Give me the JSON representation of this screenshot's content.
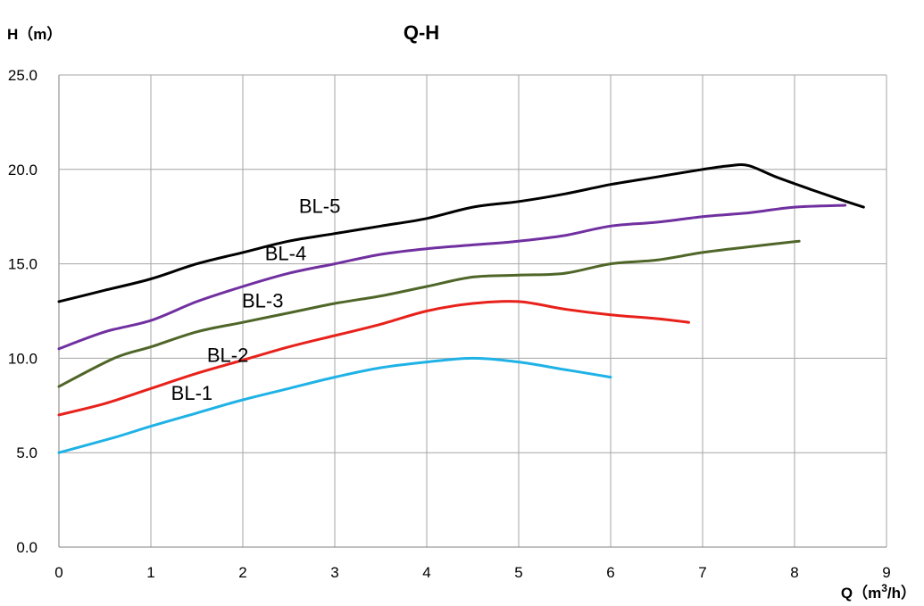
{
  "chart_data": {
    "type": "line",
    "title": "Q-H",
    "ylabel": "H（m）",
    "xlabel_prefix": "Q（m",
    "xlabel_sup": "3",
    "xlabel_suffix": "/h）",
    "xlim": [
      0,
      9
    ],
    "ylim": [
      0,
      25
    ],
    "xticks": [
      "0",
      "1",
      "2",
      "3",
      "4",
      "5",
      "6",
      "7",
      "8",
      "9"
    ],
    "yticks": [
      "0.0",
      "5.0",
      "10.0",
      "15.0",
      "20.0",
      "25.0"
    ],
    "grid": true,
    "legend": "none",
    "series": [
      {
        "name": "BL-1",
        "color": "#1fb2e6",
        "label_at": [
          1.22,
          7.8
        ],
        "x": [
          0,
          0.6,
          1,
          1.5,
          2,
          2.5,
          3,
          3.5,
          4,
          4.5,
          5,
          5.5,
          6
        ],
        "y": [
          5.0,
          5.8,
          6.4,
          7.1,
          7.8,
          8.4,
          9.0,
          9.5,
          9.8,
          10.0,
          9.8,
          9.4,
          9.0
        ]
      },
      {
        "name": "BL-2",
        "color": "#e8211b",
        "label_at": [
          1.61,
          9.8
        ],
        "x": [
          0,
          0.5,
          1,
          1.5,
          2,
          2.5,
          3,
          3.5,
          4,
          4.5,
          5,
          5.5,
          6,
          6.5,
          6.85
        ],
        "y": [
          7.0,
          7.6,
          8.4,
          9.2,
          9.9,
          10.6,
          11.2,
          11.8,
          12.5,
          12.9,
          13.0,
          12.6,
          12.3,
          12.1,
          11.9
        ]
      },
      {
        "name": "BL-3",
        "color": "#4f6628",
        "label_at": [
          1.99,
          12.7
        ],
        "x": [
          0,
          0.6,
          1,
          1.5,
          2,
          2.5,
          3,
          3.5,
          4,
          4.5,
          5,
          5.5,
          6,
          6.5,
          7,
          7.5,
          8.05
        ],
        "y": [
          8.5,
          10.0,
          10.6,
          11.4,
          11.9,
          12.4,
          12.9,
          13.3,
          13.8,
          14.3,
          14.4,
          14.5,
          15.0,
          15.2,
          15.6,
          15.9,
          16.2
        ]
      },
      {
        "name": "BL-4",
        "color": "#7030a0",
        "label_at": [
          2.24,
          15.2
        ],
        "x": [
          0,
          0.5,
          1,
          1.5,
          2,
          2.5,
          3,
          3.5,
          4,
          4.5,
          5,
          5.5,
          6,
          6.5,
          7,
          7.5,
          8,
          8.55
        ],
        "y": [
          10.5,
          11.4,
          12.0,
          13.0,
          13.8,
          14.5,
          15.0,
          15.5,
          15.8,
          16.0,
          16.2,
          16.5,
          17.0,
          17.2,
          17.5,
          17.7,
          18.0,
          18.1
        ]
      },
      {
        "name": "BL-5",
        "color": "#000000",
        "label_at": [
          2.61,
          17.7
        ],
        "x": [
          0,
          0.5,
          1,
          1.5,
          2,
          2.5,
          3,
          3.5,
          4,
          4.5,
          5,
          5.5,
          6,
          6.5,
          7,
          7.3,
          7.5,
          7.8,
          8.2,
          8.5,
          8.75
        ],
        "y": [
          13.0,
          13.6,
          14.2,
          15.0,
          15.6,
          16.2,
          16.6,
          17.0,
          17.4,
          18.0,
          18.3,
          18.7,
          19.2,
          19.6,
          20.0,
          20.2,
          20.2,
          19.6,
          18.9,
          18.4,
          18.0
        ]
      }
    ]
  }
}
